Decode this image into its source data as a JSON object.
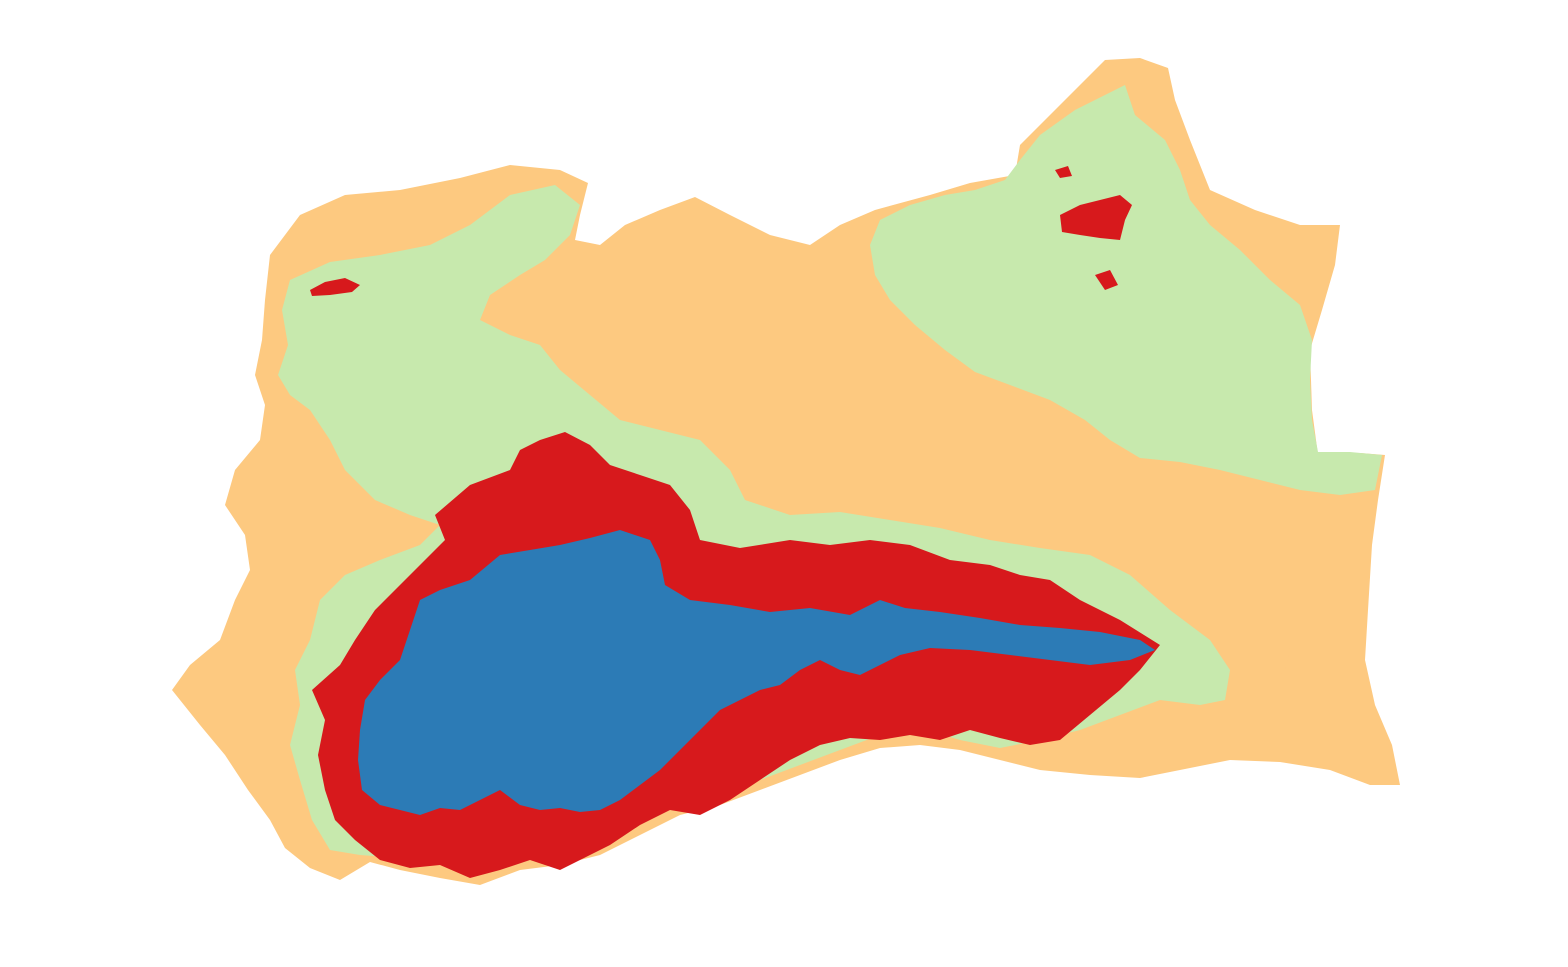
{
  "map": {
    "type": "choropleth-zones",
    "colors": {
      "background": "#ffffff",
      "zone_outer": "#fdc980",
      "zone_mid": "#c7e9ad",
      "zone_inner": "#d7191c",
      "zone_core": "#2c7bb6"
    },
    "zones": [
      {
        "id": "outer",
        "color": "#fdc980"
      },
      {
        "id": "mid",
        "color": "#c7e9ad"
      },
      {
        "id": "inner",
        "color": "#d7191c"
      },
      {
        "id": "core",
        "color": "#2c7bb6"
      }
    ]
  }
}
